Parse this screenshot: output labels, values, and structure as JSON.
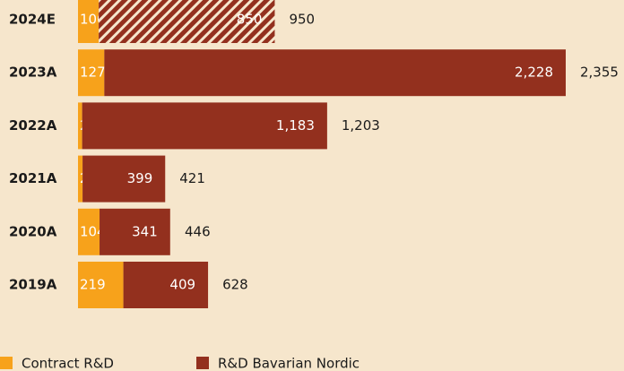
{
  "chart_data": {
    "type": "bar",
    "orientation": "horizontal",
    "stacked": true,
    "categories": [
      "2024E",
      "2023A",
      "2022A",
      "2021A",
      "2020A",
      "2019A"
    ],
    "series": [
      {
        "name": "Contract R&D",
        "color": "#f7a21b",
        "values": [
          100,
          127,
          20,
          22,
          104,
          219
        ]
      },
      {
        "name": "R&D Bavarian Nordic",
        "color": "#93301e",
        "values": [
          850,
          2228,
          1183,
          399,
          341,
          409
        ],
        "value_labels": [
          "850",
          "2,228",
          "1,183",
          "399",
          "341",
          "409"
        ],
        "hatched": [
          true,
          false,
          false,
          false,
          false,
          false
        ]
      }
    ],
    "totals": [
      950,
      2355,
      1203,
      421,
      446,
      628
    ],
    "total_labels": [
      "950",
      "2,355",
      "1,203",
      "421",
      "446",
      "628"
    ]
  }
}
